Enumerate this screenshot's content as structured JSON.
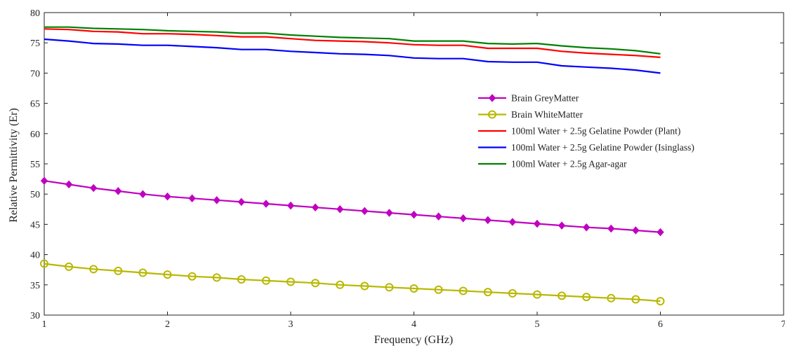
{
  "chart_data": {
    "type": "line",
    "xlabel": "Frequency (GHz)",
    "ylabel": "Relative Permittivity (Er)",
    "xlim": [
      1,
      7
    ],
    "ylim": [
      30,
      80
    ],
    "xticks": [
      "1",
      "2",
      "3",
      "4",
      "5",
      "6",
      "7"
    ],
    "yticks": [
      "30",
      "35",
      "40",
      "45",
      "50",
      "55",
      "60",
      "65",
      "70",
      "75",
      "80"
    ],
    "grid": false,
    "legend_position": "center-right",
    "series": [
      {
        "name": "Brain GreyMatter",
        "color": "#c000c0",
        "marker": "diamond",
        "x": [
          1.0,
          1.2,
          1.4,
          1.6,
          1.8,
          2.0,
          2.2,
          2.4,
          2.6,
          2.8,
          3.0,
          3.2,
          3.4,
          3.6,
          3.8,
          4.0,
          4.2,
          4.4,
          4.6,
          4.8,
          5.0,
          5.2,
          5.4,
          5.6,
          5.8,
          6.0
        ],
        "y": [
          52.2,
          51.6,
          51.0,
          50.5,
          50.0,
          49.6,
          49.3,
          49.0,
          48.7,
          48.4,
          48.1,
          47.8,
          47.5,
          47.2,
          46.9,
          46.6,
          46.3,
          46.0,
          45.7,
          45.4,
          45.1,
          44.8,
          44.5,
          44.3,
          44.0,
          43.7
        ]
      },
      {
        "name": "Brain WhiteMatter",
        "color": "#b8b800",
        "marker": "circle",
        "x": [
          1.0,
          1.2,
          1.4,
          1.6,
          1.8,
          2.0,
          2.2,
          2.4,
          2.6,
          2.8,
          3.0,
          3.2,
          3.4,
          3.6,
          3.8,
          4.0,
          4.2,
          4.4,
          4.6,
          4.8,
          5.0,
          5.2,
          5.4,
          5.6,
          5.8,
          6.0
        ],
        "y": [
          38.5,
          38.0,
          37.6,
          37.3,
          37.0,
          36.7,
          36.4,
          36.2,
          35.9,
          35.7,
          35.5,
          35.3,
          35.0,
          34.8,
          34.6,
          34.4,
          34.2,
          34.0,
          33.8,
          33.6,
          33.4,
          33.2,
          33.0,
          32.8,
          32.6,
          32.3
        ]
      },
      {
        "name": "100ml Water + 2.5g Gelatine Powder (Plant)",
        "color": "#ff0000",
        "marker": "none",
        "x": [
          1.0,
          1.2,
          1.4,
          1.6,
          1.8,
          2.0,
          2.2,
          2.4,
          2.6,
          2.8,
          3.0,
          3.2,
          3.4,
          3.6,
          3.8,
          4.0,
          4.2,
          4.4,
          4.6,
          4.8,
          5.0,
          5.2,
          5.4,
          5.6,
          5.8,
          6.0
        ],
        "y": [
          77.3,
          77.2,
          76.9,
          76.8,
          76.5,
          76.5,
          76.4,
          76.2,
          76.0,
          76.0,
          75.7,
          75.4,
          75.3,
          75.2,
          75.0,
          74.7,
          74.6,
          74.6,
          74.1,
          74.1,
          74.1,
          73.6,
          73.3,
          73.1,
          72.9,
          72.6
        ]
      },
      {
        "name": "100ml Water + 2.5g Gelatine Powder (Isinglass)",
        "color": "#0000ff",
        "marker": "none",
        "x": [
          1.0,
          1.2,
          1.4,
          1.6,
          1.8,
          2.0,
          2.2,
          2.4,
          2.6,
          2.8,
          3.0,
          3.2,
          3.4,
          3.6,
          3.8,
          4.0,
          4.2,
          4.4,
          4.6,
          4.8,
          5.0,
          5.2,
          5.4,
          5.6,
          5.8,
          6.0
        ],
        "y": [
          75.6,
          75.3,
          74.9,
          74.8,
          74.6,
          74.6,
          74.4,
          74.2,
          73.9,
          73.9,
          73.6,
          73.4,
          73.2,
          73.1,
          72.9,
          72.5,
          72.4,
          72.4,
          71.9,
          71.8,
          71.8,
          71.2,
          71.0,
          70.8,
          70.5,
          70.0
        ]
      },
      {
        "name": "100ml Water + 2.5g Agar-agar",
        "color": "#008000",
        "marker": "none",
        "x": [
          1.0,
          1.2,
          1.4,
          1.6,
          1.8,
          2.0,
          2.2,
          2.4,
          2.6,
          2.8,
          3.0,
          3.2,
          3.4,
          3.6,
          3.8,
          4.0,
          4.2,
          4.4,
          4.6,
          4.8,
          5.0,
          5.2,
          5.4,
          5.6,
          5.8,
          6.0
        ],
        "y": [
          77.6,
          77.6,
          77.4,
          77.3,
          77.2,
          77.0,
          76.9,
          76.8,
          76.6,
          76.6,
          76.3,
          76.1,
          75.9,
          75.8,
          75.7,
          75.3,
          75.3,
          75.3,
          74.9,
          74.8,
          74.9,
          74.5,
          74.2,
          74.0,
          73.7,
          73.2
        ]
      }
    ]
  }
}
